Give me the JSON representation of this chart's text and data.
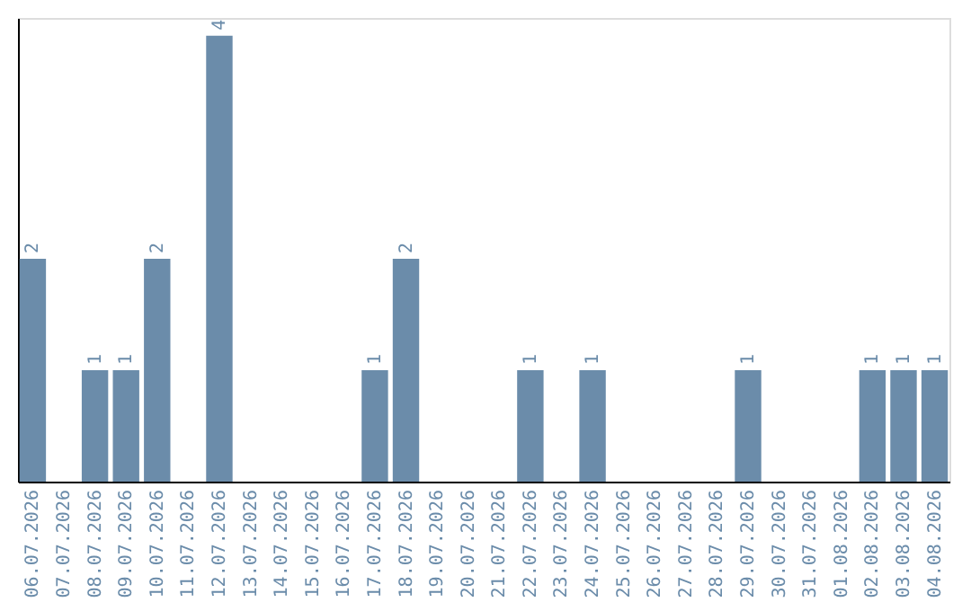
{
  "chart_data": {
    "type": "bar",
    "categories": [
      "06.07.2026",
      "07.07.2026",
      "08.07.2026",
      "09.07.2026",
      "10.07.2026",
      "11.07.2026",
      "12.07.2026",
      "13.07.2026",
      "14.07.2026",
      "15.07.2026",
      "16.07.2026",
      "17.07.2026",
      "18.07.2026",
      "19.07.2026",
      "20.07.2026",
      "21.07.2026",
      "22.07.2026",
      "23.07.2026",
      "24.07.2026",
      "25.07.2026",
      "26.07.2026",
      "27.07.2026",
      "28.07.2026",
      "29.07.2026",
      "30.07.2026",
      "31.07.2026",
      "01.08.2026",
      "02.08.2026",
      "03.08.2026",
      "04.08.2026"
    ],
    "values": [
      2,
      0,
      1,
      1,
      2,
      0,
      4,
      0,
      0,
      0,
      0,
      1,
      2,
      0,
      0,
      0,
      1,
      0,
      1,
      0,
      0,
      0,
      0,
      1,
      0,
      0,
      0,
      1,
      1,
      1
    ],
    "value_labels": [
      "2",
      null,
      "1",
      "1",
      "2",
      null,
      "4",
      null,
      null,
      null,
      null,
      "1",
      "2",
      null,
      null,
      null,
      "1",
      null,
      "1",
      null,
      null,
      null,
      null,
      "1",
      null,
      null,
      null,
      "1",
      "1",
      "1"
    ],
    "color": "#6b8caa",
    "ylim": [
      0,
      4.16
    ],
    "tick_labels": "x",
    "grid": false
  }
}
